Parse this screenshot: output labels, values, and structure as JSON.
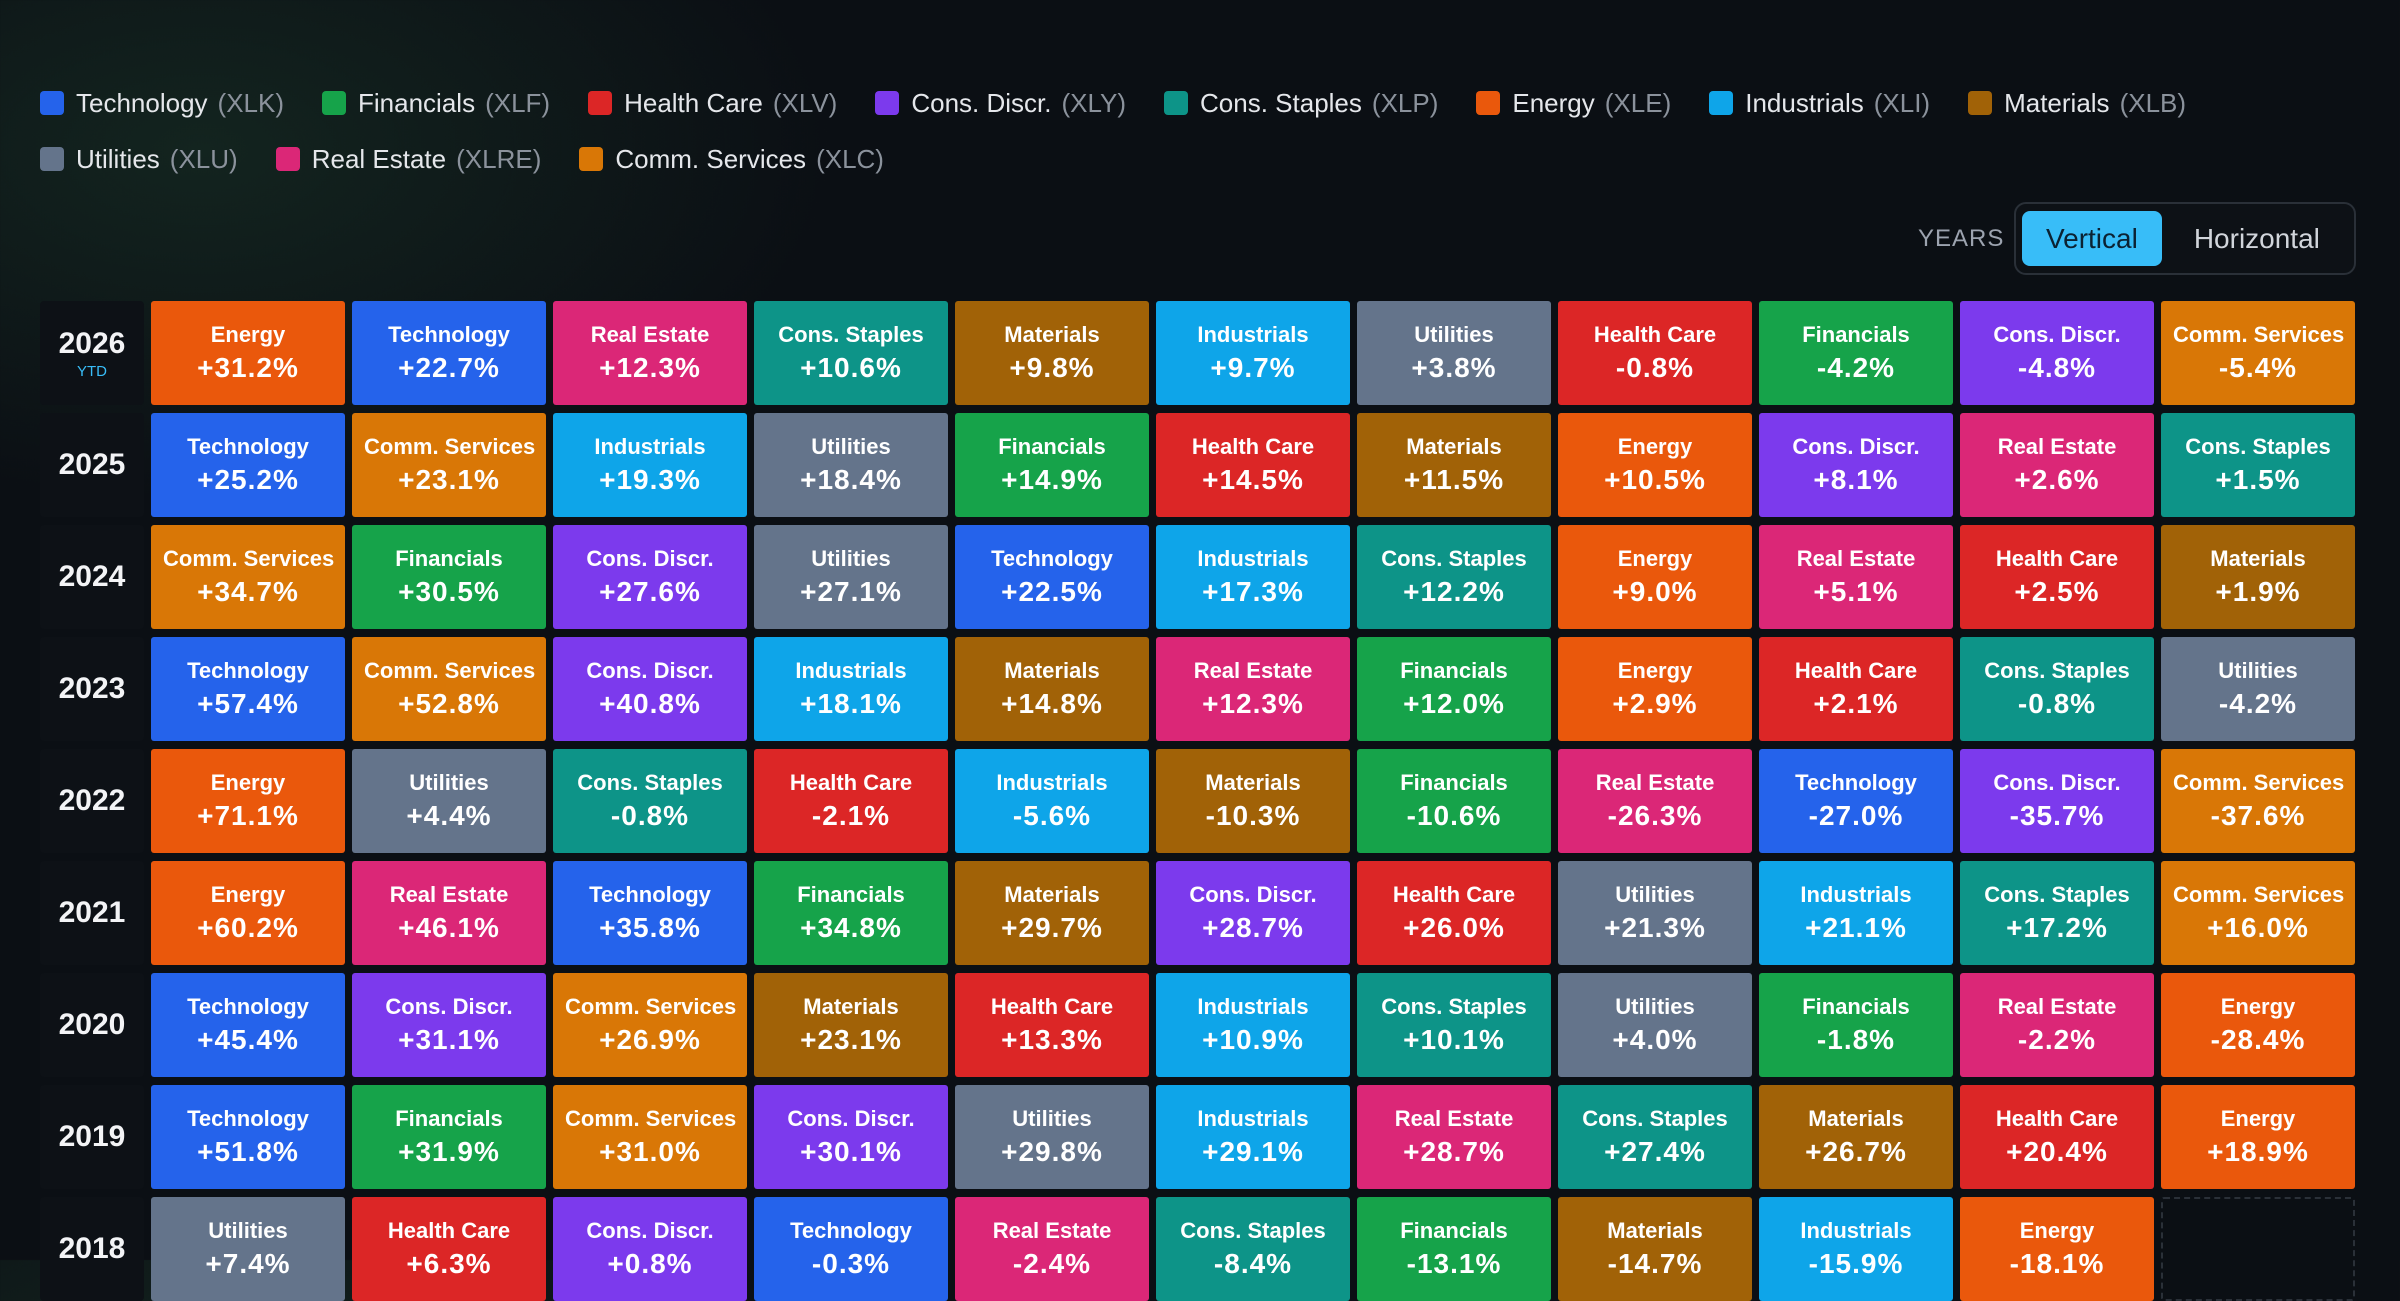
{
  "legend": [
    {
      "name": "Technology",
      "ticker": "(XLK)",
      "color": "#2563eb"
    },
    {
      "name": "Financials",
      "ticker": "(XLF)",
      "color": "#16a34a"
    },
    {
      "name": "Health Care",
      "ticker": "(XLV)",
      "color": "#dc2626"
    },
    {
      "name": "Cons. Discr.",
      "ticker": "(XLY)",
      "color": "#7c3aed"
    },
    {
      "name": "Cons. Staples",
      "ticker": "(XLP)",
      "color": "#0d9488"
    },
    {
      "name": "Energy",
      "ticker": "(XLE)",
      "color": "#ea580c"
    },
    {
      "name": "Industrials",
      "ticker": "(XLI)",
      "color": "#0ea5e9"
    },
    {
      "name": "Materials",
      "ticker": "(XLB)",
      "color": "#a16207"
    },
    {
      "name": "Utilities",
      "ticker": "(XLU)",
      "color": "#64748b"
    },
    {
      "name": "Real Estate",
      "ticker": "(XLRE)",
      "color": "#db2777"
    },
    {
      "name": "Comm. Services",
      "ticker": "(XLC)",
      "color": "#d97706"
    }
  ],
  "toggle": {
    "label": "YEARS",
    "options": [
      "Vertical",
      "Horizontal"
    ],
    "selected": "Vertical"
  },
  "rows": [
    {
      "year": "2026",
      "note": "YTD",
      "cells": [
        {
          "sector": "Energy",
          "return": "+31.2%"
        },
        {
          "sector": "Technology",
          "return": "+22.7%"
        },
        {
          "sector": "Real Estate",
          "return": "+12.3%"
        },
        {
          "sector": "Cons. Staples",
          "return": "+10.6%"
        },
        {
          "sector": "Materials",
          "return": "+9.8%"
        },
        {
          "sector": "Industrials",
          "return": "+9.7%"
        },
        {
          "sector": "Utilities",
          "return": "+3.8%"
        },
        {
          "sector": "Health Care",
          "return": "-0.8%"
        },
        {
          "sector": "Financials",
          "return": "-4.2%"
        },
        {
          "sector": "Cons. Discr.",
          "return": "-4.8%"
        },
        {
          "sector": "Comm. Services",
          "return": "-5.4%"
        }
      ]
    },
    {
      "year": "2025",
      "cells": [
        {
          "sector": "Technology",
          "return": "+25.2%"
        },
        {
          "sector": "Comm. Services",
          "return": "+23.1%"
        },
        {
          "sector": "Industrials",
          "return": "+19.3%"
        },
        {
          "sector": "Utilities",
          "return": "+18.4%"
        },
        {
          "sector": "Financials",
          "return": "+14.9%"
        },
        {
          "sector": "Health Care",
          "return": "+14.5%"
        },
        {
          "sector": "Materials",
          "return": "+11.5%"
        },
        {
          "sector": "Energy",
          "return": "+10.5%"
        },
        {
          "sector": "Cons. Discr.",
          "return": "+8.1%"
        },
        {
          "sector": "Real Estate",
          "return": "+2.6%"
        },
        {
          "sector": "Cons. Staples",
          "return": "+1.5%"
        }
      ]
    },
    {
      "year": "2024",
      "cells": [
        {
          "sector": "Comm. Services",
          "return": "+34.7%"
        },
        {
          "sector": "Financials",
          "return": "+30.5%"
        },
        {
          "sector": "Cons. Discr.",
          "return": "+27.6%"
        },
        {
          "sector": "Utilities",
          "return": "+27.1%"
        },
        {
          "sector": "Technology",
          "return": "+22.5%"
        },
        {
          "sector": "Industrials",
          "return": "+17.3%"
        },
        {
          "sector": "Cons. Staples",
          "return": "+12.2%"
        },
        {
          "sector": "Energy",
          "return": "+9.0%"
        },
        {
          "sector": "Real Estate",
          "return": "+5.1%"
        },
        {
          "sector": "Health Care",
          "return": "+2.5%"
        },
        {
          "sector": "Materials",
          "return": "+1.9%"
        }
      ]
    },
    {
      "year": "2023",
      "cells": [
        {
          "sector": "Technology",
          "return": "+57.4%"
        },
        {
          "sector": "Comm. Services",
          "return": "+52.8%"
        },
        {
          "sector": "Cons. Discr.",
          "return": "+40.8%"
        },
        {
          "sector": "Industrials",
          "return": "+18.1%"
        },
        {
          "sector": "Materials",
          "return": "+14.8%"
        },
        {
          "sector": "Real Estate",
          "return": "+12.3%"
        },
        {
          "sector": "Financials",
          "return": "+12.0%"
        },
        {
          "sector": "Energy",
          "return": "+2.9%"
        },
        {
          "sector": "Health Care",
          "return": "+2.1%"
        },
        {
          "sector": "Cons. Staples",
          "return": "-0.8%"
        },
        {
          "sector": "Utilities",
          "return": "-4.2%"
        }
      ]
    },
    {
      "year": "2022",
      "cells": [
        {
          "sector": "Energy",
          "return": "+71.1%"
        },
        {
          "sector": "Utilities",
          "return": "+4.4%"
        },
        {
          "sector": "Cons. Staples",
          "return": "-0.8%"
        },
        {
          "sector": "Health Care",
          "return": "-2.1%"
        },
        {
          "sector": "Industrials",
          "return": "-5.6%"
        },
        {
          "sector": "Materials",
          "return": "-10.3%"
        },
        {
          "sector": "Financials",
          "return": "-10.6%"
        },
        {
          "sector": "Real Estate",
          "return": "-26.3%"
        },
        {
          "sector": "Technology",
          "return": "-27.0%"
        },
        {
          "sector": "Cons. Discr.",
          "return": "-35.7%"
        },
        {
          "sector": "Comm. Services",
          "return": "-37.6%"
        }
      ]
    },
    {
      "year": "2021",
      "cells": [
        {
          "sector": "Energy",
          "return": "+60.2%"
        },
        {
          "sector": "Real Estate",
          "return": "+46.1%"
        },
        {
          "sector": "Technology",
          "return": "+35.8%"
        },
        {
          "sector": "Financials",
          "return": "+34.8%"
        },
        {
          "sector": "Materials",
          "return": "+29.7%"
        },
        {
          "sector": "Cons. Discr.",
          "return": "+28.7%"
        },
        {
          "sector": "Health Care",
          "return": "+26.0%"
        },
        {
          "sector": "Utilities",
          "return": "+21.3%"
        },
        {
          "sector": "Industrials",
          "return": "+21.1%"
        },
        {
          "sector": "Cons. Staples",
          "return": "+17.2%"
        },
        {
          "sector": "Comm. Services",
          "return": "+16.0%"
        }
      ]
    },
    {
      "year": "2020",
      "cells": [
        {
          "sector": "Technology",
          "return": "+45.4%"
        },
        {
          "sector": "Cons. Discr.",
          "return": "+31.1%"
        },
        {
          "sector": "Comm. Services",
          "return": "+26.9%"
        },
        {
          "sector": "Materials",
          "return": "+23.1%"
        },
        {
          "sector": "Health Care",
          "return": "+13.3%"
        },
        {
          "sector": "Industrials",
          "return": "+10.9%"
        },
        {
          "sector": "Cons. Staples",
          "return": "+10.1%"
        },
        {
          "sector": "Utilities",
          "return": "+4.0%"
        },
        {
          "sector": "Financials",
          "return": "-1.8%"
        },
        {
          "sector": "Real Estate",
          "return": "-2.2%"
        },
        {
          "sector": "Energy",
          "return": "-28.4%"
        }
      ]
    },
    {
      "year": "2019",
      "cells": [
        {
          "sector": "Technology",
          "return": "+51.8%"
        },
        {
          "sector": "Financials",
          "return": "+31.9%"
        },
        {
          "sector": "Comm. Services",
          "return": "+31.0%"
        },
        {
          "sector": "Cons. Discr.",
          "return": "+30.1%"
        },
        {
          "sector": "Utilities",
          "return": "+29.8%"
        },
        {
          "sector": "Industrials",
          "return": "+29.1%"
        },
        {
          "sector": "Real Estate",
          "return": "+28.7%"
        },
        {
          "sector": "Cons. Staples",
          "return": "+27.4%"
        },
        {
          "sector": "Materials",
          "return": "+26.7%"
        },
        {
          "sector": "Health Care",
          "return": "+20.4%"
        },
        {
          "sector": "Energy",
          "return": "+18.9%"
        }
      ]
    },
    {
      "year": "2018",
      "cells": [
        {
          "sector": "Utilities",
          "return": "+7.4%"
        },
        {
          "sector": "Health Care",
          "return": "+6.3%"
        },
        {
          "sector": "Cons. Discr.",
          "return": "+0.8%"
        },
        {
          "sector": "Technology",
          "return": "-0.3%"
        },
        {
          "sector": "Real Estate",
          "return": "-2.4%"
        },
        {
          "sector": "Cons. Staples",
          "return": "-8.4%"
        },
        {
          "sector": "Financials",
          "return": "-13.1%"
        },
        {
          "sector": "Materials",
          "return": "-14.7%"
        },
        {
          "sector": "Industrials",
          "return": "-15.9%"
        },
        {
          "sector": "Energy",
          "return": "-18.1%"
        }
      ]
    }
  ]
}
